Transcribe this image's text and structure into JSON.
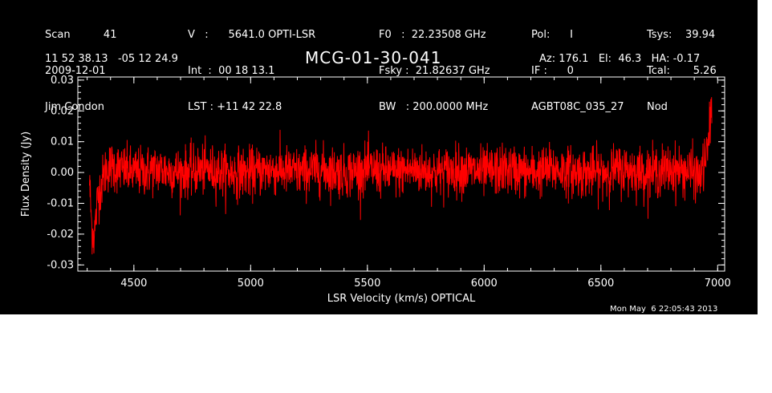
{
  "header": {
    "col1": [
      "Scan          41",
      "2009-12-01",
      "Jim Condon"
    ],
    "col2": [
      "V   :      5641.0 OPTI-LSR",
      "Int  :  00 18 13.1",
      "LST : +11 42 22.8"
    ],
    "col3": [
      "F0   :  22.23508 GHz",
      "Fsky :  21.82637 GHz",
      "BW   : 200.0000 MHz"
    ],
    "col4": [
      "Pol:      I",
      "IF :      0",
      "AGBT08C_035_27"
    ],
    "col5": [
      "Tsys:    39.94",
      "Tcal:       5.26",
      "Nod"
    ],
    "coords": "11 52 38.13   -05 12 24.9",
    "source": "MCG-01-30-041",
    "azel": "Az: 176.1   El:  46.3   HA: -0.17",
    "timestamp": "Mon May  6 22:05:43 2013"
  },
  "chart_data": {
    "type": "line",
    "xlabel": "LSR Velocity (km/s) OPTICAL",
    "ylabel": "Flux Density (Jy)",
    "xlim": [
      4260,
      7030
    ],
    "ylim": [
      -0.032,
      0.031
    ],
    "x_ticks": [
      4500,
      5000,
      5500,
      6000,
      6500,
      7000
    ],
    "x_tick_labels": [
      "4500",
      "5000",
      "5500",
      "6000",
      "6500",
      "7000"
    ],
    "y_ticks": [
      -0.03,
      -0.02,
      -0.01,
      0.0,
      0.01,
      0.02,
      0.03
    ],
    "y_tick_labels": [
      "-0.03",
      "-0.02",
      "-0.01",
      "0.00",
      "0.01",
      "0.02",
      "0.03"
    ],
    "grid": false,
    "series": [
      {
        "color": "#ff0000",
        "x": [
          4310,
          4320,
          4330,
          4345,
          4360,
          4380,
          4400,
          4450,
          4500,
          4600,
          4700,
          4800,
          4900,
          5000,
          5100,
          5200,
          5300,
          5400,
          5500,
          5600,
          5700,
          5800,
          5900,
          6000,
          6100,
          6200,
          6300,
          6400,
          6500,
          6600,
          6700,
          6800,
          6900,
          6920,
          6940,
          6955,
          6965,
          6975
        ],
        "y": [
          -0.003,
          -0.018,
          -0.021,
          -0.008,
          -0.004,
          0.001,
          0.002,
          0.001,
          0.0,
          0.001,
          0.0,
          0.001,
          0.0,
          0.0,
          0.001,
          0.0,
          0.001,
          0.0,
          0.001,
          0.0,
          0.001,
          0.0,
          0.001,
          0.0,
          0.001,
          0.0,
          0.001,
          0.0,
          0.0,
          0.001,
          0.0,
          0.001,
          0.0,
          -0.002,
          0.002,
          0.006,
          0.014,
          0.022
        ],
        "noise_rms": 0.004
      }
    ]
  }
}
